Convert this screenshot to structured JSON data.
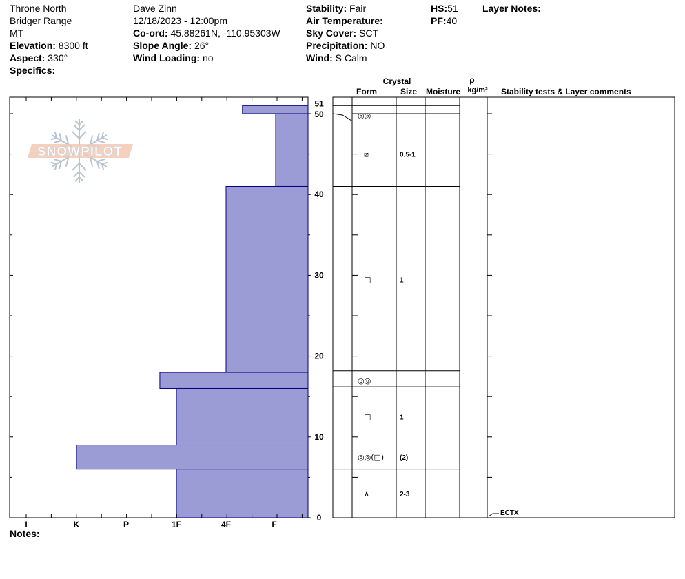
{
  "header": {
    "col1": {
      "location": "Throne North",
      "range": "Bridger Range",
      "state": "MT",
      "elevation_label": "Elevation:",
      "elevation_value": "8300 ft",
      "aspect_label": "Aspect:",
      "aspect_value": "330°",
      "specifics_label": "Specifics:"
    },
    "col2": {
      "observer": "Dave Zinn",
      "datetime": "12/18/2023 - 12:00pm",
      "coord_label": "Co-ord:",
      "coord_value": "45.88261N, -110.95303W",
      "slope_label": "Slope Angle:",
      "slope_value": "26°",
      "wind_loading_label": "Wind Loading:",
      "wind_loading_value": "no"
    },
    "col3": {
      "stability_label": "Stability:",
      "stability_value": "Fair",
      "air_temp_label": "Air Temperature:",
      "air_temp_value": "",
      "sky_label": "Sky Cover:",
      "sky_value": "SCT",
      "precip_label": "Precipitation:",
      "precip_value": "NO",
      "wind_label": "Wind:",
      "wind_value": " S Calm"
    },
    "col4": {
      "hs_label": "HS:",
      "hs_value": "51",
      "pf_label": "PF:",
      "pf_value": "40"
    },
    "layer_notes_label": "Layer Notes:"
  },
  "table_headers": {
    "crystal": "Crystal",
    "form": "Form",
    "size": "Size",
    "moisture": "Moisture",
    "rho": "ρ",
    "density_unit": "kg/m³",
    "stability_tests": "Stability tests & Layer comments"
  },
  "logo_text": "SNOWPILOT",
  "notes_label": "Notes:",
  "colors": {
    "bar_fill": "#9b9bd6",
    "bar_stroke": "#000080"
  },
  "chart_data": {
    "type": "bar",
    "orientation": "horizontal-step",
    "ylabel": "",
    "xlabel": "",
    "ylim": [
      0,
      51
    ],
    "y_ticks": [
      "0",
      "10",
      "20",
      "30",
      "40",
      "50",
      "51"
    ],
    "hardness_scale": [
      "I",
      "K",
      "P",
      "1F",
      "4F",
      "F"
    ],
    "hardness_positions": {
      "I": 1,
      "K": 2,
      "P": 3,
      "1F": 4,
      "4F": 5,
      "F": 6
    },
    "layers": [
      {
        "bottom": 50,
        "top": 51,
        "hardness": 5.33
      },
      {
        "bottom": 41,
        "top": 50,
        "hardness": 6.0
      },
      {
        "bottom": 18,
        "top": 41,
        "hardness": 5.0
      },
      {
        "bottom": 16,
        "top": 18,
        "hardness": 3.67
      },
      {
        "bottom": 9,
        "top": 16,
        "hardness": 4.0
      },
      {
        "bottom": 6,
        "top": 9,
        "hardness": 2.0
      },
      {
        "bottom": 0,
        "top": 6,
        "hardness": 4.0
      }
    ],
    "crystal_layers": [
      {
        "bottom": 49,
        "top": 50.6,
        "form": "◎◎",
        "size": ""
      },
      {
        "bottom": 41,
        "top": 49,
        "form": "⧄",
        "size": "0.5-1"
      },
      {
        "bottom": 18,
        "top": 41,
        "form": "□",
        "size": "1"
      },
      {
        "bottom": 16,
        "top": 18,
        "form": "◎◎",
        "size": ""
      },
      {
        "bottom": 9,
        "top": 16,
        "form": "□",
        "size": "1"
      },
      {
        "bottom": 6,
        "top": 9,
        "form": "◎◎(□)",
        "size": "(2)"
      },
      {
        "bottom": 0,
        "top": 6,
        "form": "∧",
        "size": "2-3"
      }
    ],
    "stability_tests": [
      {
        "depth": 0,
        "label": "ECTX"
      }
    ]
  }
}
